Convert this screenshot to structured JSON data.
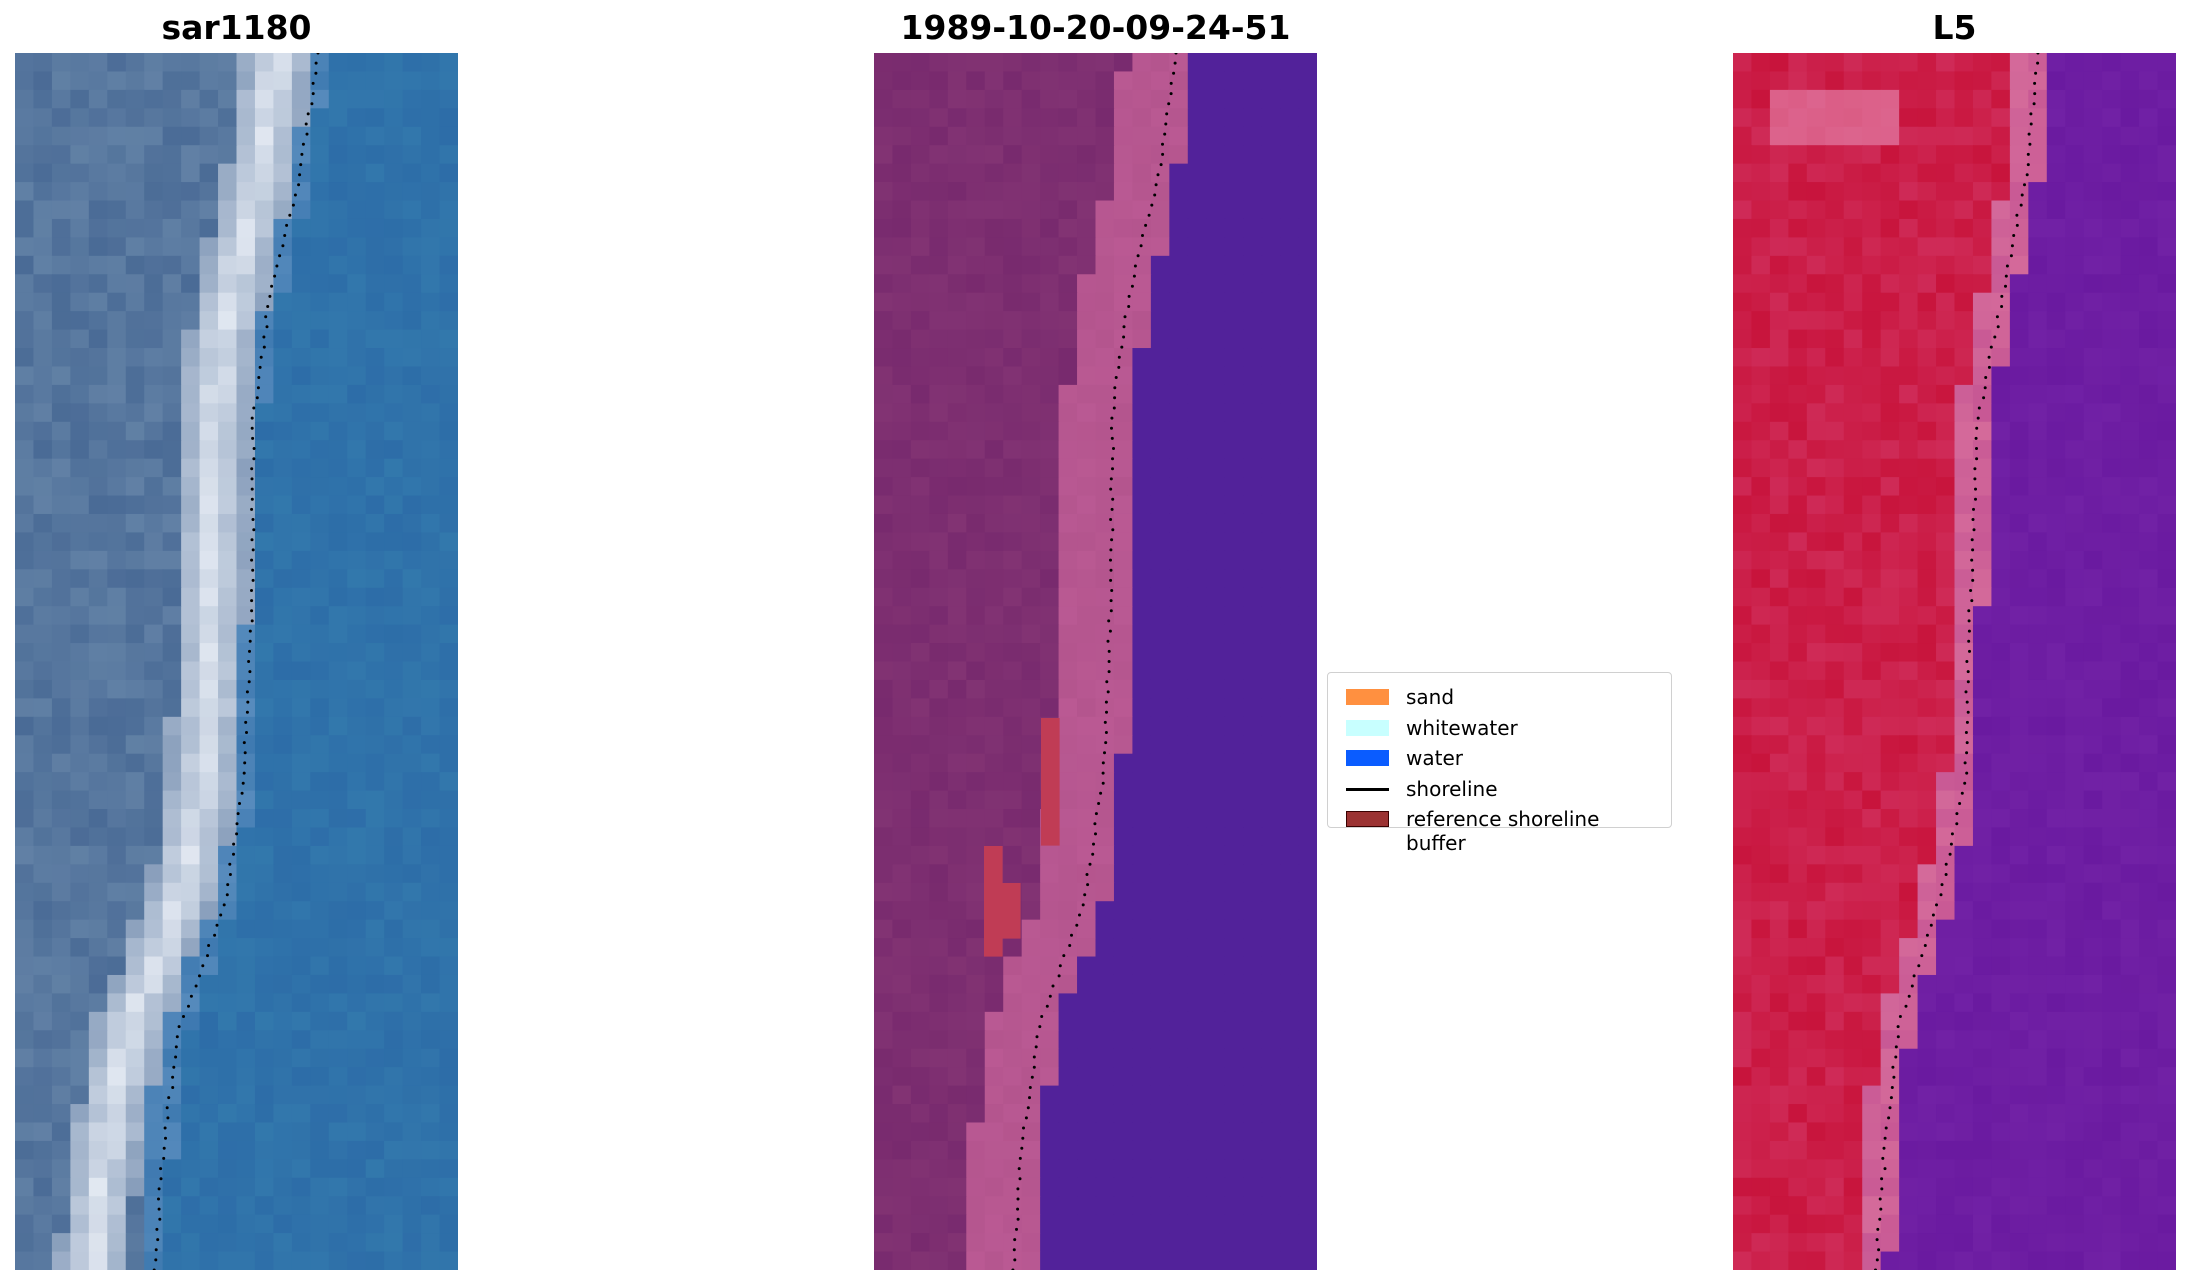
{
  "panels": [
    {
      "title": "sar1180",
      "kind": "rgb-composite"
    },
    {
      "title": "1989-10-20-09-24-51",
      "kind": "classified-overlay"
    },
    {
      "title": "L5",
      "kind": "false-color"
    }
  ],
  "legend": {
    "items": [
      {
        "label": "sand",
        "type": "patch",
        "color": "#ff9040"
      },
      {
        "label": "whitewater",
        "type": "patch",
        "color": "#c8ffff"
      },
      {
        "label": "water",
        "type": "patch",
        "color": "#0a5cff"
      },
      {
        "label": "shoreline",
        "type": "line",
        "color": "#000000"
      },
      {
        "label": "reference shoreline buffer",
        "type": "patch",
        "color": "#9b3232"
      }
    ]
  },
  "colors": {
    "rgb_water": "#2d6da8",
    "rgb_whitewater": "#e8edf5",
    "rgb_land": "#4a6b96",
    "class_land": "#782a6e",
    "class_sand_band": "#b4558e",
    "class_water": "#52229a",
    "class_buffer": "#c03c55",
    "fc_land": "#c8143c",
    "fc_transition": "#d46a9a",
    "fc_water": "#6a1aa0"
  }
}
